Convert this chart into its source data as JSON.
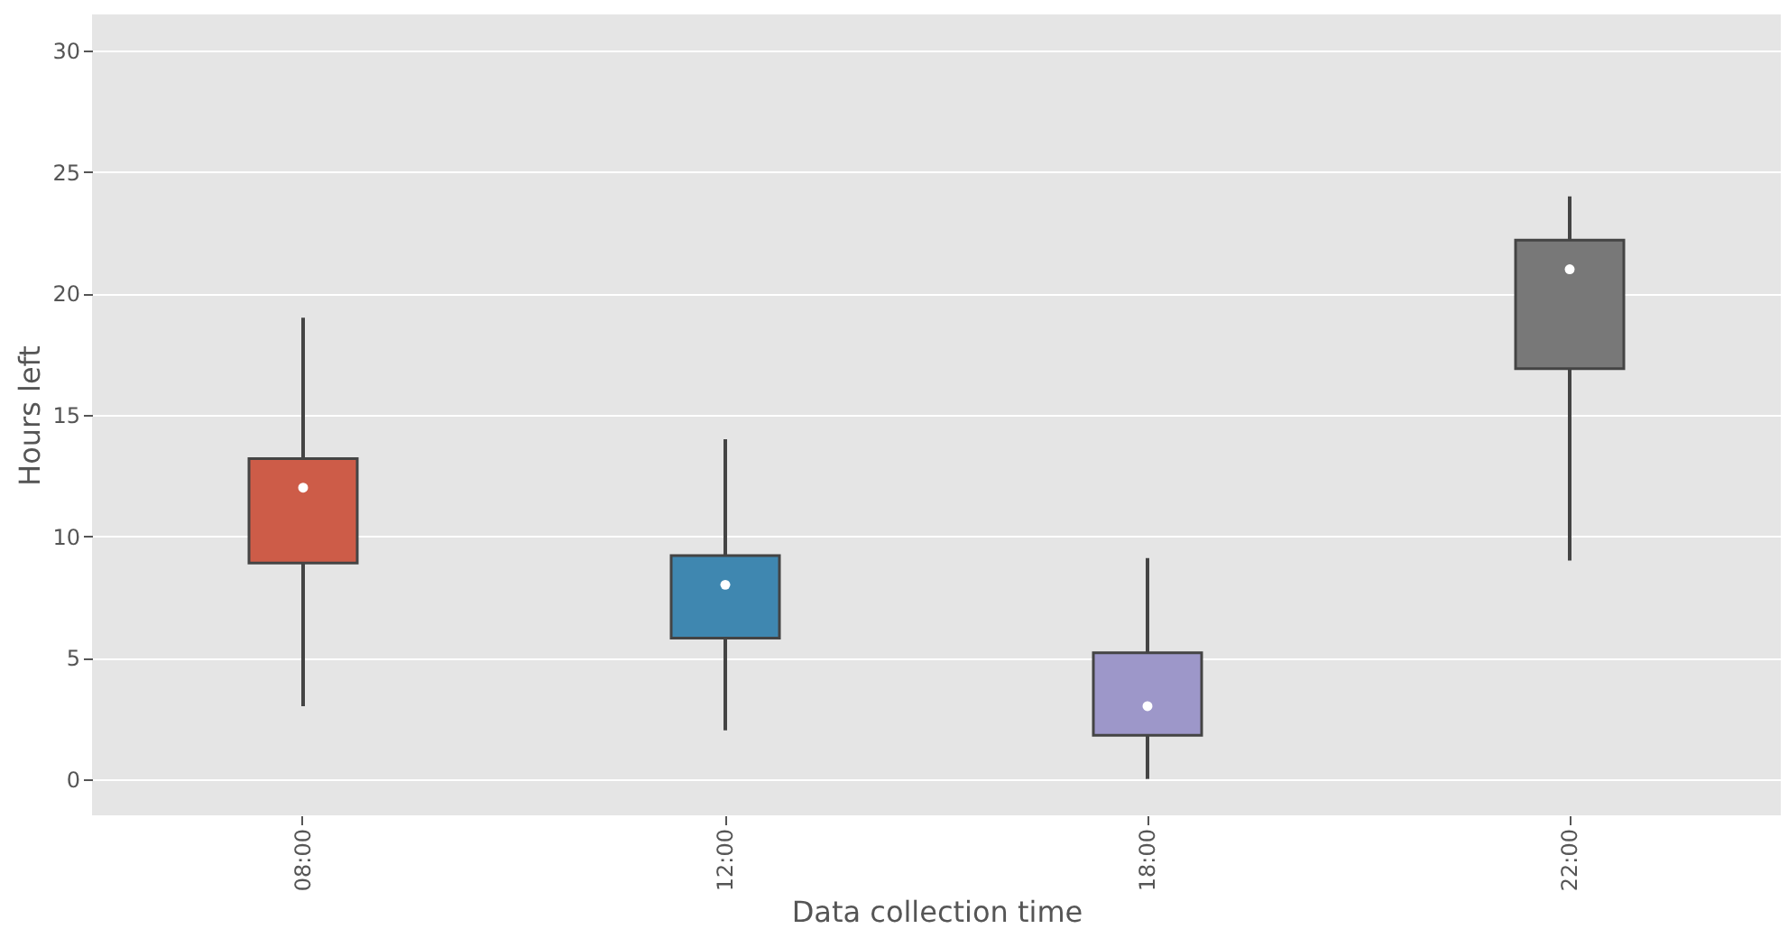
{
  "chart_data": {
    "type": "box",
    "xlabel": "Data collection time",
    "ylabel": "Hours left",
    "categories": [
      "08:00",
      "12:00",
      "18:00",
      "22:00"
    ],
    "colors": [
      "#cd5c48",
      "#3f87b0",
      "#9d97c9",
      "#787878"
    ],
    "boxes": [
      {
        "low": 3,
        "q1": 8.9,
        "median": 12,
        "q3": 13.2,
        "high": 19
      },
      {
        "low": 2,
        "q1": 5.8,
        "median": 8,
        "q3": 9.2,
        "high": 14
      },
      {
        "low": 0,
        "q1": 1.8,
        "median": 3,
        "q3": 5.2,
        "high": 9.1
      },
      {
        "low": 9,
        "q1": 16.9,
        "median": 21,
        "q3": 22.2,
        "high": 24
      }
    ],
    "ylim": [
      -1.5,
      31.5
    ],
    "yticks": [
      0,
      5,
      10,
      15,
      20,
      25,
      30
    ],
    "grid": "y"
  }
}
